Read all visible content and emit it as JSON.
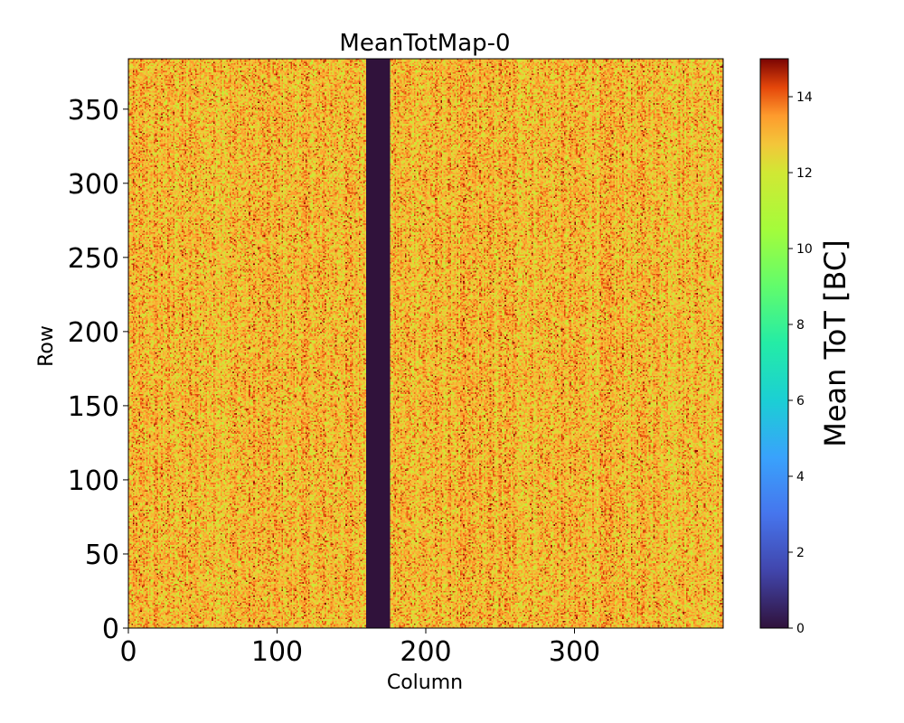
{
  "chart_data": {
    "type": "heatmap",
    "title": "MeanTotMap-0",
    "xlabel": "Column",
    "ylabel": "Row",
    "xlim": [
      0,
      400
    ],
    "ylim": [
      0,
      384
    ],
    "n_columns": 400,
    "n_rows": 384,
    "x_ticks": [
      0,
      100,
      200,
      300
    ],
    "y_ticks": [
      0,
      50,
      100,
      150,
      200,
      250,
      300,
      350
    ],
    "x_tick_labels": [
      "0",
      "100",
      "200",
      "300"
    ],
    "y_tick_labels": [
      "0",
      "50",
      "100",
      "150",
      "200",
      "250",
      "300",
      "350"
    ],
    "colormap": "turbo",
    "color_range": [
      0,
      15
    ],
    "colorbar": {
      "label": "Mean ToT [BC]",
      "ticks": [
        0,
        2,
        4,
        6,
        8,
        10,
        12,
        14
      ],
      "tick_labels": [
        "0",
        "2",
        "4",
        "6",
        "8",
        "10",
        "12",
        "14"
      ]
    },
    "dead_columns": [
      160,
      176
    ],
    "dead_value": 0,
    "typical_value_range": [
      10,
      15
    ],
    "typical_mean": 13
  }
}
